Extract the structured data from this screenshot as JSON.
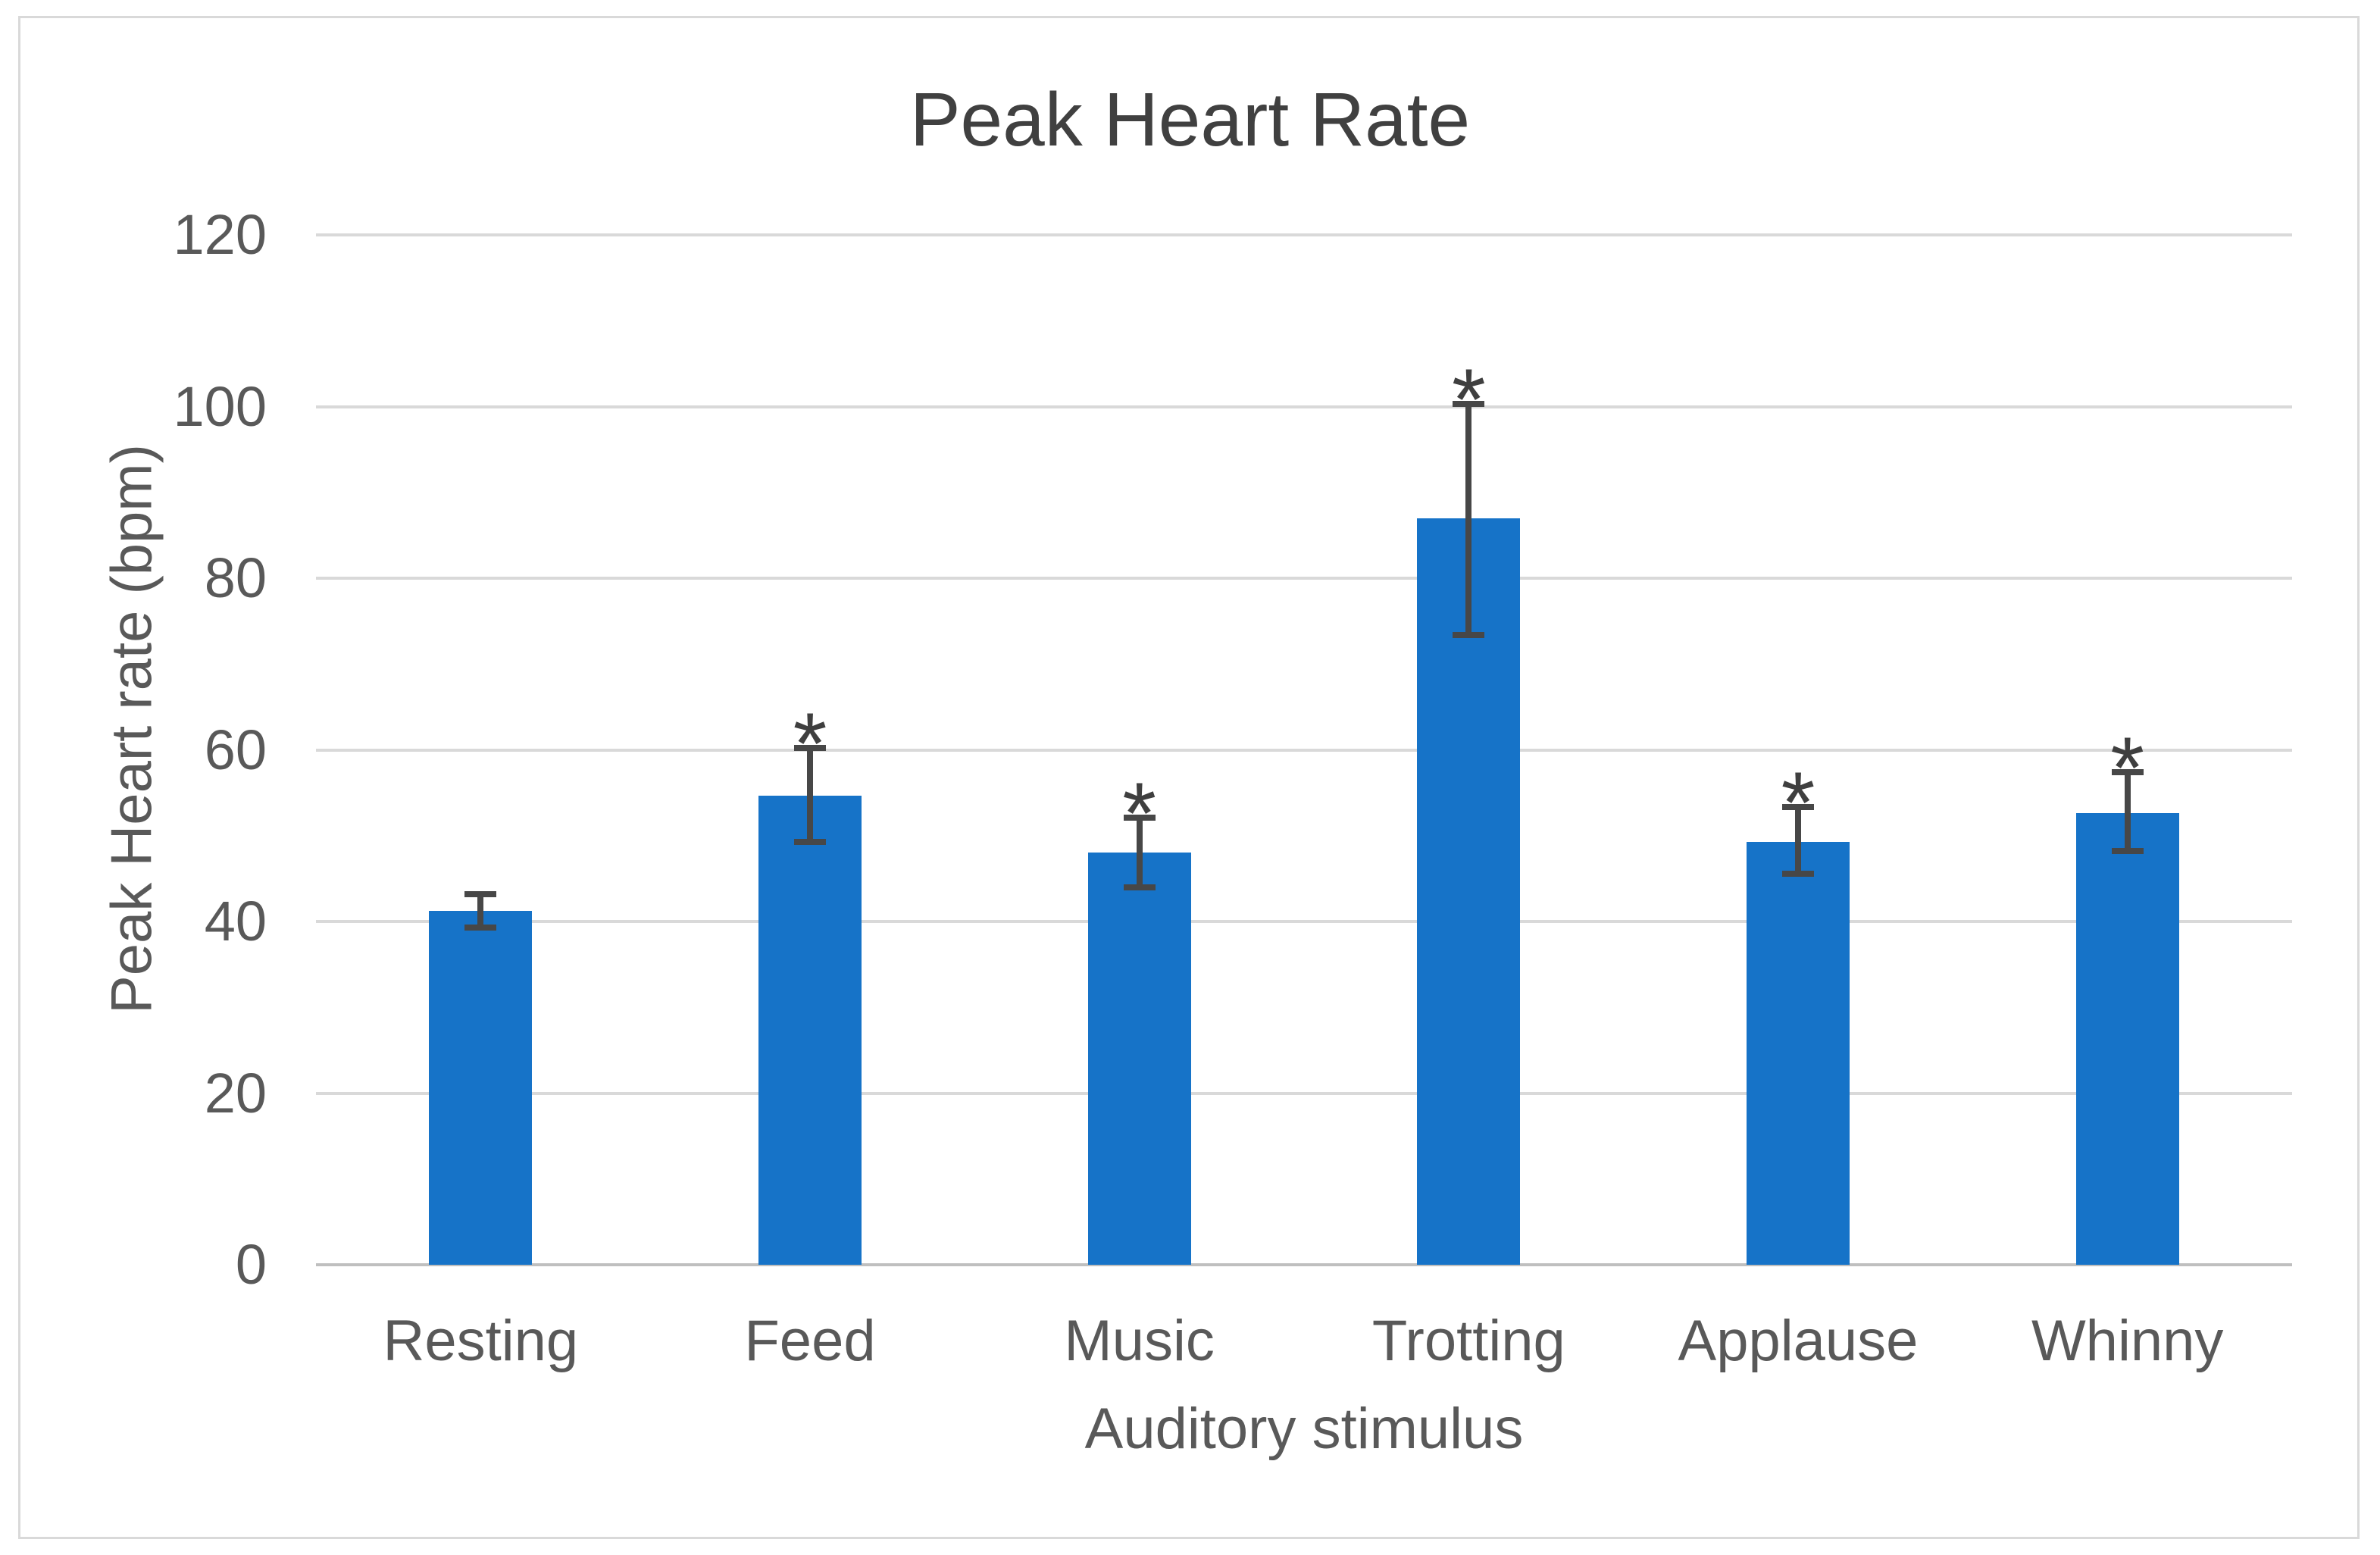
{
  "chart_data": {
    "type": "bar",
    "title": "Peak Heart Rate",
    "xlabel": "Auditory stimulus",
    "ylabel": "Peak Heart rate (bpm)",
    "categories": [
      "Resting",
      "Feed",
      "Music",
      "Trotting",
      "Applause",
      "Whinny"
    ],
    "values": [
      41.2,
      54.7,
      48.0,
      87.0,
      49.3,
      52.6
    ],
    "error_low": [
      39.3,
      49.3,
      44.0,
      73.4,
      45.6,
      48.2
    ],
    "error_high": [
      43.2,
      60.2,
      52.1,
      100.3,
      53.3,
      57.4
    ],
    "significance": [
      false,
      true,
      true,
      true,
      true,
      true
    ],
    "sig_marker": "*",
    "yticks": [
      0,
      20,
      40,
      60,
      80,
      100,
      120
    ],
    "ylim": [
      0,
      120
    ],
    "grid": true,
    "legend": false,
    "colors": {
      "bar": "#1673C8",
      "error_bar": "#474747",
      "sig_marker": "#3F3F3F",
      "gridline": "#D9D9D9",
      "axis_line": "#BFBFBF",
      "tick_text": "#595959",
      "title_text": "#404040",
      "frame_border": "#D9D9D9"
    }
  }
}
